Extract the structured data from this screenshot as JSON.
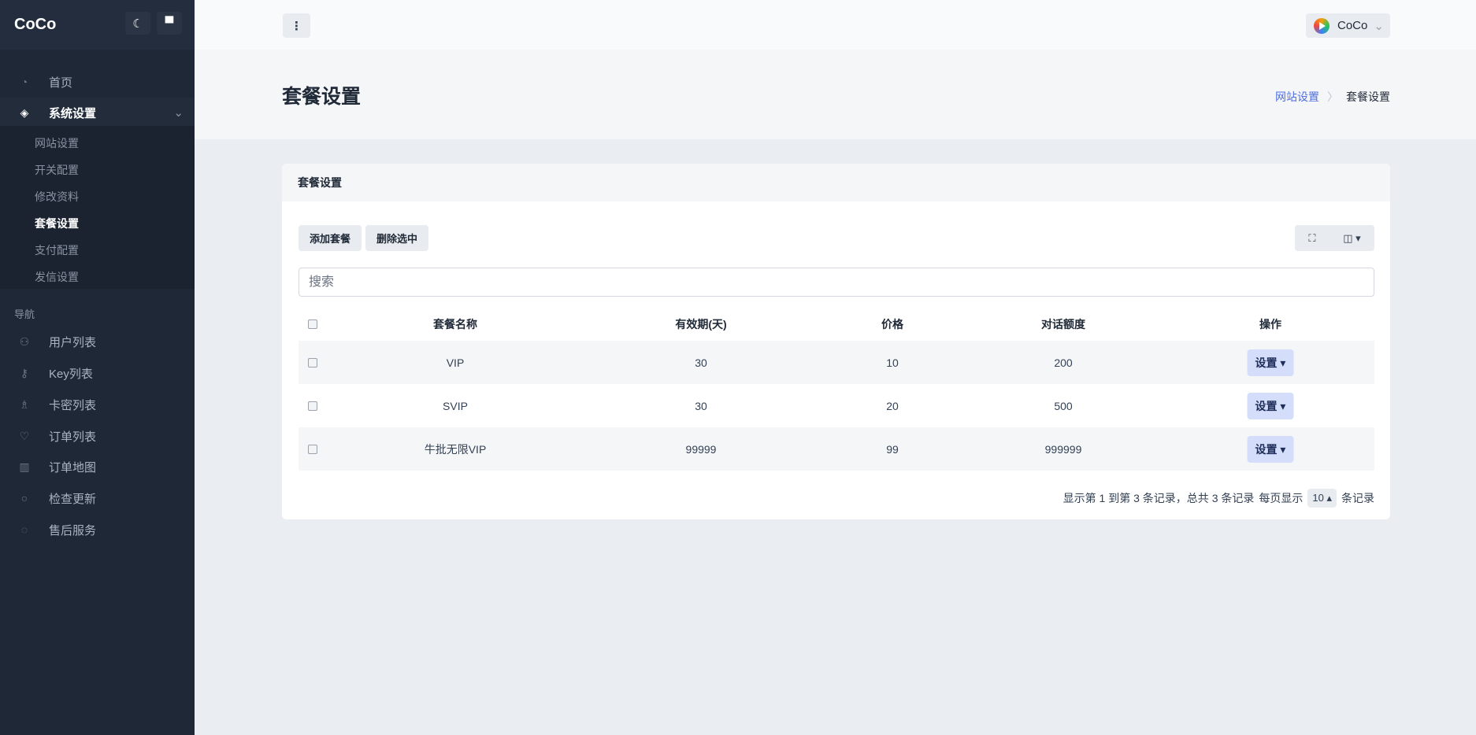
{
  "app": {
    "logo": "CoCo"
  },
  "sidebar": {
    "items_top": [
      {
        "label": "首页",
        "icon": "dashboard-icon"
      },
      {
        "label": "系统设置",
        "icon": "layers-icon"
      }
    ],
    "submenu": [
      "网站设置",
      "开关配置",
      "修改资料",
      "套餐设置",
      "支付配置",
      "发信设置"
    ],
    "active_sub": "套餐设置",
    "nav_label": "导航",
    "nav_items": [
      {
        "label": "用户列表",
        "icon": "users-icon"
      },
      {
        "label": "Key列表",
        "icon": "key-icon"
      },
      {
        "label": "卡密列表",
        "icon": "chess-icon"
      },
      {
        "label": "订单列表",
        "icon": "heart-icon"
      },
      {
        "label": "订单地图",
        "icon": "map-icon"
      },
      {
        "label": "检查更新",
        "icon": "refresh-icon"
      },
      {
        "label": "售后服务",
        "icon": "chat-icon"
      }
    ]
  },
  "topbar": {
    "user": "CoCo"
  },
  "page": {
    "title": "套餐设置",
    "breadcrumb": [
      "网站设置",
      "套餐设置"
    ]
  },
  "card": {
    "title": "套餐设置",
    "add_label": "添加套餐",
    "delete_label": "删除选中",
    "search_placeholder": "搜索",
    "columns": [
      "套餐名称",
      "有效期(天)",
      "价格",
      "对话额度",
      "操作"
    ],
    "rows": [
      {
        "name": "VIP",
        "days": "30",
        "price": "10",
        "quota": "200",
        "action": "设置"
      },
      {
        "name": "SVIP",
        "days": "30",
        "price": "20",
        "quota": "500",
        "action": "设置"
      },
      {
        "name": "牛批无限VIP",
        "days": "99999",
        "price": "99",
        "quota": "999999",
        "action": "设置"
      }
    ],
    "pager": {
      "summary": "显示第 1 到第 3 条记录，总共 3 条记录",
      "per_page_prefix": "每页显示",
      "per_page": "10",
      "per_page_suffix": "条记录"
    }
  },
  "colors": {
    "sidebar_bg": "#1f2837",
    "accent": "#4f6fe0",
    "action_btn": "#d4defa"
  }
}
